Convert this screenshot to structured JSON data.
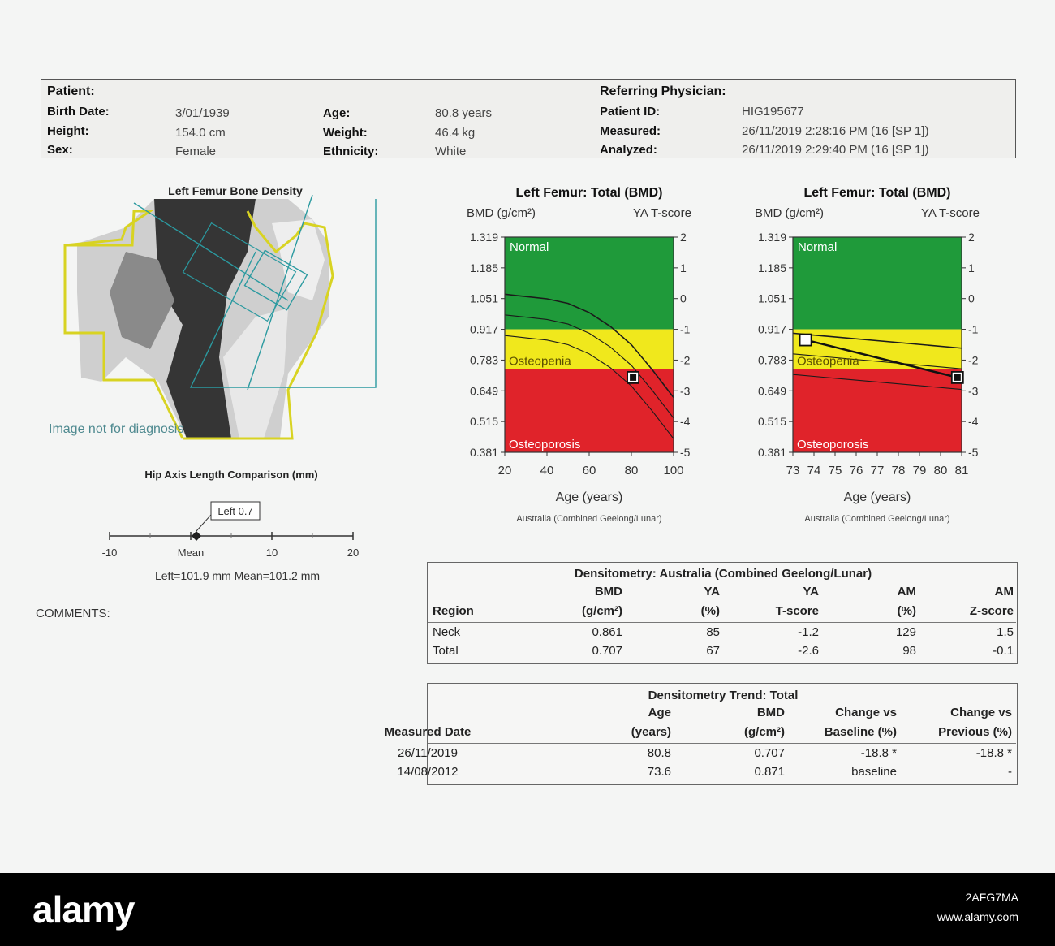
{
  "patient": {
    "patient_label": "Patient:",
    "referring_label": "Referring Physician:",
    "birth_date_label": "Birth Date:",
    "birth_date": "3/01/1939",
    "height_label": "Height:",
    "height": "154.0 cm",
    "sex_label": "Sex:",
    "sex": "Female",
    "age_label": "Age:",
    "age": "80.8 years",
    "weight_label": "Weight:",
    "weight": "46.4 kg",
    "ethnicity_label": "Ethnicity:",
    "ethnicity": "White",
    "patient_id_label": "Patient ID:",
    "patient_id": "HIG195677",
    "measured_label": "Measured:",
    "measured": "26/11/2019  2:28:16 PM (16  [SP 1])",
    "analyzed_label": "Analyzed:",
    "analyzed": "26/11/2019  2:29:40 PM (16  [SP 1])"
  },
  "scan": {
    "title": "Left Femur Bone Density",
    "disclaimer": "Image not for diagnosis"
  },
  "hip_axis": {
    "title": "Hip Axis Length Comparison (mm)",
    "marker_label": "Left 0.7",
    "marker_value": 0.7,
    "ticks": [
      "-10",
      "Mean",
      "10",
      "20"
    ],
    "summary": "Left=101.9 mm  Mean=101.2 mm"
  },
  "comments_label": "COMMENTS:",
  "chart_data": [
    {
      "type": "line",
      "title": "Left Femur: Total (BMD)",
      "ylabel": "BMD (g/cm²)",
      "y2label": "YA T-score",
      "xlabel": "Age (years)",
      "footnote": "Australia (Combined Geelong/Lunar)",
      "yticks": [
        "1.319",
        "1.185",
        "1.051",
        "0.917",
        "0.783",
        "0.649",
        "0.515",
        "0.381"
      ],
      "y2ticks": [
        "2",
        "1",
        "0",
        "-1",
        "-2",
        "-3",
        "-4",
        "-5"
      ],
      "xticks": [
        "20",
        "40",
        "60",
        "80",
        "100"
      ],
      "xlim": [
        20,
        100
      ],
      "ylim": [
        0.381,
        1.319
      ],
      "zones": [
        {
          "name": "Normal",
          "from": 0.917,
          "to": 1.319,
          "color": "#1f9a3a"
        },
        {
          "name": "Osteopenia",
          "from": 0.743,
          "to": 0.917,
          "color": "#f0e81c"
        },
        {
          "name": "Osteoporosis",
          "from": 0.381,
          "to": 0.743,
          "color": "#e0232a"
        }
      ],
      "reference_curves": [
        {
          "x": [
            20,
            30,
            40,
            50,
            60,
            70,
            80,
            90,
            100
          ],
          "y": [
            1.07,
            1.06,
            1.05,
            1.03,
            0.99,
            0.93,
            0.85,
            0.74,
            0.62
          ]
        },
        {
          "x": [
            20,
            30,
            40,
            50,
            60,
            70,
            80,
            90,
            100
          ],
          "y": [
            0.98,
            0.97,
            0.96,
            0.94,
            0.9,
            0.84,
            0.76,
            0.65,
            0.53
          ]
        },
        {
          "x": [
            20,
            30,
            40,
            50,
            60,
            70,
            80,
            90,
            100
          ],
          "y": [
            0.89,
            0.88,
            0.87,
            0.85,
            0.81,
            0.75,
            0.67,
            0.56,
            0.44
          ]
        }
      ],
      "points": [
        {
          "x": 80.8,
          "y": 0.707
        }
      ]
    },
    {
      "type": "line",
      "title": "Left Femur: Total (BMD)",
      "ylabel": "BMD (g/cm²)",
      "y2label": "YA T-score",
      "xlabel": "Age (years)",
      "footnote": "Australia (Combined Geelong/Lunar)",
      "yticks": [
        "1.319",
        "1.185",
        "1.051",
        "0.917",
        "0.783",
        "0.649",
        "0.515",
        "0.381"
      ],
      "y2ticks": [
        "2",
        "1",
        "0",
        "-1",
        "-2",
        "-3",
        "-4",
        "-5"
      ],
      "xticks": [
        "73",
        "74",
        "75",
        "76",
        "77",
        "78",
        "79",
        "80",
        "81"
      ],
      "xlim": [
        73,
        81
      ],
      "ylim": [
        0.381,
        1.319
      ],
      "zones": [
        {
          "name": "Normal",
          "from": 0.917,
          "to": 1.319,
          "color": "#1f9a3a"
        },
        {
          "name": "Osteopenia",
          "from": 0.743,
          "to": 0.917,
          "color": "#f0e81c"
        },
        {
          "name": "Osteoporosis",
          "from": 0.381,
          "to": 0.743,
          "color": "#e0232a"
        }
      ],
      "reference_curves": [
        {
          "x": [
            73,
            81
          ],
          "y": [
            0.9,
            0.835
          ]
        },
        {
          "x": [
            73,
            81
          ],
          "y": [
            0.81,
            0.745
          ]
        },
        {
          "x": [
            73,
            81
          ],
          "y": [
            0.72,
            0.655
          ]
        }
      ],
      "points": [
        {
          "x": 73.6,
          "y": 0.871
        },
        {
          "x": 80.8,
          "y": 0.707
        }
      ],
      "trend_line": true
    }
  ],
  "densitometry": {
    "title": "Densitometry: Australia (Combined Geelong/Lunar)",
    "headers_top": [
      "",
      "BMD",
      "YA",
      "YA",
      "AM",
      "AM"
    ],
    "headers_bottom": [
      "Region",
      "(g/cm²)",
      "(%)",
      "T-score",
      "(%)",
      "Z-score"
    ],
    "rows": [
      [
        "Neck",
        "0.861",
        "85",
        "-1.2",
        "129",
        "1.5"
      ],
      [
        "Total",
        "0.707",
        "67",
        "-2.6",
        "98",
        "-0.1"
      ]
    ]
  },
  "trend": {
    "title": "Densitometry Trend: Total",
    "headers_top": [
      "",
      "Age",
      "BMD",
      "Change vs",
      "Change vs"
    ],
    "headers_bottom": [
      "Measured Date",
      "(years)",
      "(g/cm²)",
      "Baseline (%)",
      "Previous (%)"
    ],
    "rows": [
      [
        "26/11/2019",
        "80.8",
        "0.707",
        "-18.8 *",
        "-18.8 *"
      ],
      [
        "14/08/2012",
        "73.6",
        "0.871",
        "baseline",
        "-"
      ]
    ]
  },
  "footer": {
    "logo": "alamy",
    "image_id": "2AFG7MA",
    "url": "www.alamy.com"
  }
}
